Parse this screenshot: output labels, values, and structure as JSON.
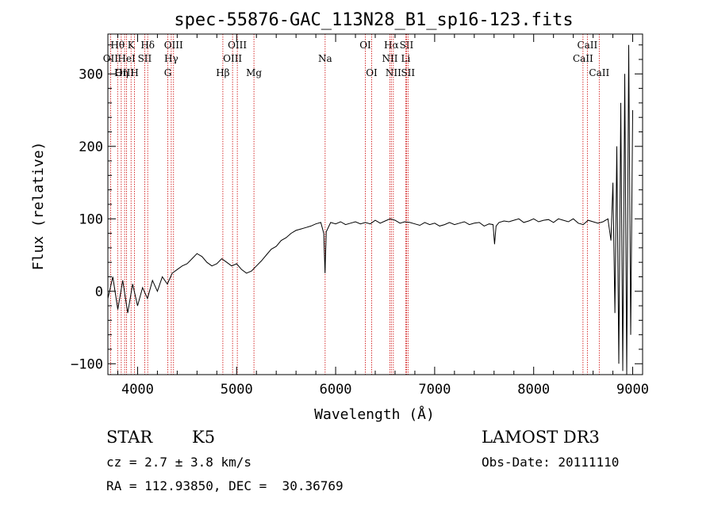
{
  "chart_data": {
    "type": "line",
    "title": "spec-55876-GAC_113N28_B1_sp16-123.fits",
    "xlabel": "Wavelength (Å)",
    "ylabel": "Flux (relative)",
    "xlim": [
      3700,
      9100
    ],
    "ylim": [
      -115,
      355
    ],
    "xticks": [
      4000,
      5000,
      6000,
      7000,
      8000,
      9000
    ],
    "yticks": [
      -100,
      0,
      100,
      200,
      300
    ],
    "grid": false,
    "spectrum": {
      "x": [
        3700,
        3750,
        3800,
        3850,
        3900,
        3950,
        4000,
        4050,
        4100,
        4150,
        4200,
        4250,
        4300,
        4350,
        4400,
        4450,
        4500,
        4550,
        4600,
        4650,
        4700,
        4750,
        4800,
        4850,
        4900,
        4950,
        5000,
        5050,
        5100,
        5150,
        5200,
        5250,
        5300,
        5350,
        5400,
        5450,
        5500,
        5550,
        5600,
        5650,
        5700,
        5750,
        5800,
        5850,
        5880,
        5893,
        5905,
        5950,
        6000,
        6050,
        6100,
        6150,
        6200,
        6250,
        6300,
        6350,
        6400,
        6450,
        6500,
        6550,
        6600,
        6650,
        6700,
        6750,
        6800,
        6850,
        6900,
        6950,
        7000,
        7050,
        7100,
        7150,
        7200,
        7250,
        7300,
        7350,
        7400,
        7450,
        7500,
        7550,
        7590,
        7605,
        7620,
        7650,
        7700,
        7750,
        7800,
        7850,
        7900,
        7950,
        8000,
        8050,
        8100,
        8150,
        8200,
        8250,
        8300,
        8350,
        8400,
        8450,
        8500,
        8550,
        8600,
        8650,
        8700,
        8750,
        8780,
        8800,
        8820,
        8840,
        8860,
        8880,
        8900,
        8920,
        8940,
        8960,
        8980,
        9000
      ],
      "y": [
        -10,
        20,
        -25,
        15,
        -30,
        10,
        -20,
        5,
        -10,
        15,
        0,
        20,
        10,
        25,
        30,
        35,
        38,
        45,
        52,
        48,
        40,
        35,
        38,
        45,
        40,
        35,
        38,
        30,
        25,
        28,
        35,
        42,
        50,
        58,
        62,
        70,
        74,
        80,
        84,
        86,
        88,
        90,
        93,
        95,
        80,
        25,
        82,
        95,
        93,
        96,
        92,
        94,
        96,
        93,
        95,
        93,
        98,
        94,
        97,
        100,
        98,
        94,
        96,
        95,
        93,
        91,
        95,
        92,
        94,
        90,
        92,
        95,
        92,
        94,
        96,
        92,
        94,
        95,
        90,
        93,
        92,
        65,
        90,
        95,
        97,
        96,
        98,
        100,
        95,
        97,
        100,
        96,
        98,
        99,
        95,
        100,
        98,
        96,
        100,
        94,
        92,
        98,
        96,
        94,
        96,
        100,
        70,
        150,
        -30,
        200,
        -100,
        260,
        -110,
        300,
        -120,
        340,
        -60,
        250
      ]
    },
    "line_markers": [
      {
        "label": "Hθ",
        "x": 3798,
        "row": 1
      },
      {
        "label": "OII",
        "x": 3727,
        "row": 2
      },
      {
        "label": "OIII",
        "x": 3869,
        "row": 3
      },
      {
        "label": "Hη",
        "x": 3835,
        "row": 3
      },
      {
        "label": "K",
        "x": 3934,
        "row": 1
      },
      {
        "label": "HeI",
        "x": 3889,
        "row": 2
      },
      {
        "label": "H",
        "x": 3969,
        "row": 3
      },
      {
        "label": "Hδ",
        "x": 4102,
        "row": 1
      },
      {
        "label": "SII",
        "x": 4072,
        "row": 2
      },
      {
        "label": "OIII",
        "x": 4363,
        "row": 1
      },
      {
        "label": "Hγ",
        "x": 4340,
        "row": 2
      },
      {
        "label": "G",
        "x": 4305,
        "row": 3
      },
      {
        "label": "OIII",
        "x": 5007,
        "row": 1
      },
      {
        "label": "OIII",
        "x": 4959,
        "row": 2
      },
      {
        "label": "Hβ",
        "x": 4861,
        "row": 3
      },
      {
        "label": "Mg",
        "x": 5175,
        "row": 3
      },
      {
        "label": "Na",
        "x": 5894,
        "row": 2
      },
      {
        "label": "OI",
        "x": 6300,
        "row": 1
      },
      {
        "label": "OI",
        "x": 6364,
        "row": 3
      },
      {
        "label": "Hα",
        "x": 6563,
        "row": 1
      },
      {
        "label": "SII",
        "x": 6716,
        "row": 1
      },
      {
        "label": "NII",
        "x": 6548,
        "row": 2
      },
      {
        "label": "Li",
        "x": 6708,
        "row": 2
      },
      {
        "label": "NII",
        "x": 6583,
        "row": 3
      },
      {
        "label": "SII",
        "x": 6731,
        "row": 3
      },
      {
        "label": "CaII",
        "x": 8542,
        "row": 1
      },
      {
        "label": "CaII",
        "x": 8498,
        "row": 2
      },
      {
        "label": "CaII",
        "x": 8662,
        "row": 3
      }
    ]
  },
  "info": {
    "object_class": "STAR",
    "subclass": "K5",
    "redshift": "cz = 2.7 ± 3.8 km/s",
    "coords": "RA = 112.93850, DEC =  30.36769",
    "survey": "LAMOST DR3",
    "obs_date": "Obs-Date: 20111110"
  },
  "colors": {
    "marker": "#cc0000",
    "spectrum": "#000000"
  }
}
